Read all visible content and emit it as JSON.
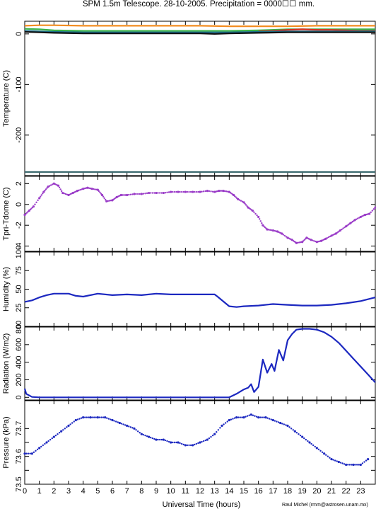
{
  "title": "SPM 1.5m Telescope. 28-10-2005. Precipitation = 0000☐☐ mm.",
  "xlabel": "Universal Time (hours)",
  "credit": "Raul Michel (rmm@astrosen.unam.mx)",
  "x_ticks": [
    "0",
    "1",
    "2",
    "3",
    "4",
    "5",
    "6",
    "7",
    "8",
    "9",
    "10",
    "11",
    "12",
    "13",
    "14",
    "15",
    "16",
    "17",
    "18",
    "19",
    "20",
    "21",
    "22",
    "23"
  ],
  "chart_data": [
    {
      "type": "line",
      "ylabel": "Temperature (C)",
      "xlim": [
        0,
        24
      ],
      "ylim": [
        -280,
        25
      ],
      "yticks": [
        0,
        -100,
        -200
      ],
      "grid": false,
      "series": [
        {
          "color": "#f28c1f",
          "x": [
            0,
            1,
            2,
            4,
            6,
            8,
            10,
            12,
            14,
            16,
            18,
            20,
            22,
            24
          ],
          "y": [
            16,
            17,
            17,
            16,
            16,
            16,
            16,
            16,
            15,
            15,
            15,
            16,
            16,
            16
          ]
        },
        {
          "color": "#3cb34a",
          "x": [
            0,
            1,
            2,
            4,
            6,
            8,
            10,
            12,
            14,
            16,
            18,
            20,
            22,
            24
          ],
          "y": [
            10,
            9,
            7,
            6,
            6,
            6,
            6,
            6,
            6,
            7,
            9,
            9,
            9,
            9
          ]
        },
        {
          "color": "#d93020",
          "x": [
            16,
            17,
            18,
            19,
            20,
            21,
            22,
            23,
            24
          ],
          "y": [
            5,
            6,
            8,
            9,
            8,
            8,
            7,
            6,
            6
          ]
        },
        {
          "color": "#1a6f8a",
          "x": [
            0,
            1,
            2,
            4,
            6,
            8,
            10,
            12,
            14,
            16,
            18,
            20,
            22,
            24
          ],
          "y": [
            6,
            5,
            4,
            3,
            3,
            3,
            3,
            3,
            3,
            4,
            5,
            5,
            5,
            5
          ]
        },
        {
          "color": "#111111",
          "x": [
            0,
            1,
            2,
            4,
            6,
            8,
            10,
            12,
            13,
            14,
            16,
            18,
            20,
            22,
            24
          ],
          "y": [
            4,
            3,
            2,
            1,
            1,
            1,
            1,
            1,
            0,
            1,
            2,
            3,
            3,
            3,
            3
          ]
        },
        {
          "color": "#3d6b70",
          "x": [
            0,
            24
          ],
          "y": [
            -273,
            -273
          ]
        }
      ]
    },
    {
      "type": "scatter",
      "ylabel": "Tpri-Tdome (C)",
      "xlim": [
        0,
        24
      ],
      "ylim": [
        -4.5,
        2.7
      ],
      "yticks": [
        2,
        0,
        -2,
        -4
      ],
      "grid": false,
      "series": [
        {
          "color": "#9a3cc8",
          "x": [
            0,
            0.3,
            0.6,
            1,
            1.3,
            1.6,
            2,
            2.3,
            2.6,
            3,
            3.3,
            3.6,
            4,
            4.3,
            4.6,
            5,
            5.3,
            5.6,
            6,
            6.3,
            6.6,
            7,
            7.5,
            8,
            8.5,
            9,
            9.5,
            10,
            10.5,
            11,
            11.5,
            12,
            12.5,
            13,
            13.3,
            13.6,
            14,
            14.3,
            14.6,
            15,
            15.3,
            15.6,
            16,
            16.3,
            16.6,
            17,
            17.3,
            17.6,
            18,
            18.3,
            18.6,
            19,
            19.3,
            19.6,
            20,
            20.3,
            20.6,
            21,
            21.3,
            21.6,
            22,
            22.3,
            22.6,
            23,
            23.3,
            23.6,
            24
          ],
          "y": [
            -1,
            -0.6,
            -0.2,
            0.6,
            1.2,
            1.7,
            2,
            1.8,
            1.1,
            0.9,
            1.1,
            1.3,
            1.5,
            1.6,
            1.5,
            1.4,
            0.9,
            0.3,
            0.4,
            0.7,
            0.9,
            0.9,
            1,
            1,
            1.1,
            1.1,
            1.1,
            1.2,
            1.2,
            1.2,
            1.2,
            1.2,
            1.3,
            1.2,
            1.3,
            1.3,
            1.2,
            0.9,
            0.5,
            0.2,
            -0.3,
            -0.6,
            -1.2,
            -2,
            -2.4,
            -2.5,
            -2.6,
            -2.8,
            -3.2,
            -3.4,
            -3.7,
            -3.6,
            -3.2,
            -3.4,
            -3.6,
            -3.5,
            -3.3,
            -3.0,
            -2.8,
            -2.5,
            -2.1,
            -1.8,
            -1.5,
            -1.2,
            -1.0,
            -0.9,
            -0.3
          ]
        }
      ]
    },
    {
      "type": "line",
      "ylabel": "Humidity (%)",
      "xlim": [
        0,
        24
      ],
      "ylim": [
        0,
        100
      ],
      "yticks": [
        0,
        25,
        50,
        75,
        100
      ],
      "grid": false,
      "series": [
        {
          "color": "#1c28c0",
          "x": [
            0,
            0.5,
            1,
            1.5,
            2,
            3,
            3.5,
            4,
            5,
            6,
            7,
            8,
            9,
            10,
            11,
            12,
            13,
            13.2,
            14,
            14.5,
            15,
            16,
            17,
            18,
            19,
            20,
            21,
            22,
            23,
            24
          ],
          "y": [
            33,
            35,
            39,
            42,
            44,
            44,
            41,
            40,
            44,
            42,
            43,
            42,
            44,
            43,
            43,
            43,
            43,
            40,
            27,
            26,
            27,
            28,
            30,
            29,
            28,
            28,
            29,
            31,
            34,
            39
          ]
        }
      ]
    },
    {
      "type": "line",
      "ylabel": "Radiation (W/m2)",
      "xlim": [
        0,
        24
      ],
      "ylim": [
        -30,
        800
      ],
      "yticks": [
        0,
        200,
        400,
        600,
        800
      ],
      "grid": false,
      "series": [
        {
          "color": "#1c28c0",
          "x": [
            0,
            0.1,
            0.5,
            1,
            2,
            4,
            6,
            8,
            10,
            12,
            13,
            14,
            14.5,
            15,
            15.3,
            15.5,
            15.7,
            16,
            16.3,
            16.6,
            16.9,
            17.1,
            17.4,
            17.7,
            18,
            18.3,
            18.6,
            19,
            19.5,
            20,
            20.5,
            21,
            21.5,
            22,
            22.5,
            23,
            23.5,
            24
          ],
          "y": [
            100,
            40,
            5,
            0,
            0,
            0,
            0,
            0,
            0,
            0,
            0,
            0,
            40,
            90,
            110,
            150,
            60,
            120,
            430,
            280,
            380,
            300,
            540,
            420,
            650,
            720,
            770,
            780,
            780,
            770,
            740,
            690,
            620,
            530,
            440,
            350,
            260,
            170
          ]
        }
      ]
    },
    {
      "type": "scatter",
      "ylabel": "Pressure (kPa)",
      "xlim": [
        0,
        24
      ],
      "ylim": [
        73.5,
        73.8
      ],
      "yticks": [
        73.5,
        73.55,
        73.6,
        73.65,
        73.7
      ],
      "ytick_labels": [
        "73.5",
        "",
        "73.6",
        "",
        "73.7"
      ],
      "grid": false,
      "series": [
        {
          "color": "#1c28c0",
          "x": [
            0,
            0.5,
            1,
            1.5,
            2,
            2.5,
            3,
            3.5,
            4,
            4.5,
            5,
            5.5,
            6,
            6.5,
            7,
            7.5,
            8,
            8.5,
            9,
            9.5,
            10,
            10.5,
            11,
            11.5,
            12,
            12.5,
            13,
            13.5,
            14,
            14.5,
            15,
            15.5,
            16,
            16.5,
            17,
            17.5,
            18,
            18.5,
            19,
            19.5,
            20,
            20.5,
            21,
            21.5,
            22,
            22.5,
            23,
            23.5
          ],
          "y": [
            73.61,
            73.61,
            73.63,
            73.65,
            73.67,
            73.69,
            73.71,
            73.73,
            73.74,
            73.74,
            73.74,
            73.74,
            73.73,
            73.72,
            73.71,
            73.7,
            73.68,
            73.67,
            73.66,
            73.66,
            73.65,
            73.65,
            73.64,
            73.64,
            73.65,
            73.66,
            73.68,
            73.71,
            73.73,
            73.74,
            73.74,
            73.75,
            73.74,
            73.74,
            73.73,
            73.72,
            73.71,
            73.69,
            73.67,
            73.65,
            73.63,
            73.61,
            73.59,
            73.58,
            73.57,
            73.57,
            73.57,
            73.59
          ]
        }
      ]
    }
  ]
}
